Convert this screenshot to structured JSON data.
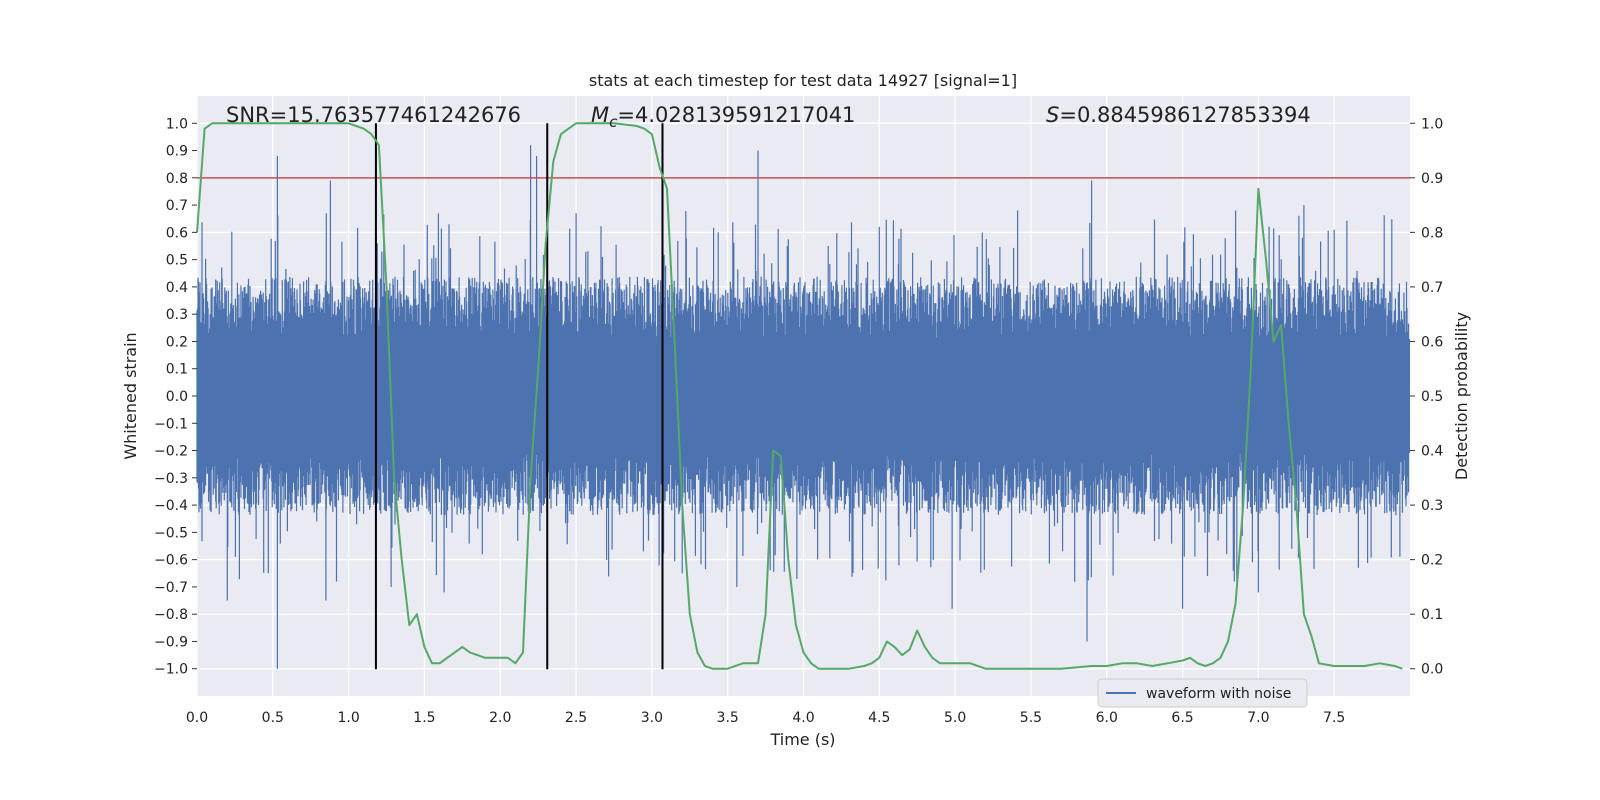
{
  "chart_data": {
    "type": "line",
    "title": "stats at each timestep for test data 14927 [signal=1]",
    "xlabel": "Time (s)",
    "ylabel_left": "Whitened strain",
    "ylabel_right": "Detection probability",
    "xlim": [
      0.0,
      8.0
    ],
    "ylim_left": [
      -1.1,
      1.1
    ],
    "ylim_right": [
      -0.05,
      1.05
    ],
    "x_ticks": [
      0.0,
      0.5,
      1.0,
      1.5,
      2.0,
      2.5,
      3.0,
      3.5,
      4.0,
      4.5,
      5.0,
      5.5,
      6.0,
      6.5,
      7.0,
      7.5
    ],
    "x_tick_labels": [
      "0.0",
      "0.5",
      "1.0",
      "1.5",
      "2.0",
      "2.5",
      "3.0",
      "3.5",
      "4.0",
      "4.5",
      "5.0",
      "5.5",
      "6.0",
      "6.5",
      "7.0",
      "7.5"
    ],
    "y_left_ticks": [
      1.0,
      0.9,
      0.8,
      0.7,
      0.6,
      0.5,
      0.4,
      0.3,
      0.2,
      0.1,
      0.0,
      -0.1,
      -0.2,
      -0.3,
      -0.4,
      -0.5,
      -0.6,
      -0.7,
      -0.8,
      -0.9,
      -1.0
    ],
    "y_left_tick_labels": [
      "1.0",
      "0.9",
      "0.8",
      "0.7",
      "0.6",
      "0.5",
      "0.4",
      "0.3",
      "0.2",
      "0.1",
      "0.0",
      "−0.1",
      "−0.2",
      "−0.3",
      "−0.4",
      "−0.5",
      "−0.6",
      "−0.7",
      "−0.8",
      "−0.9",
      "−1.0"
    ],
    "y_right_ticks": [
      1.0,
      0.9,
      0.8,
      0.7,
      0.6,
      0.5,
      0.4,
      0.3,
      0.2,
      0.1,
      0.0
    ],
    "y_right_tick_labels": [
      "1.0",
      "0.9",
      "0.8",
      "0.7",
      "0.6",
      "0.5",
      "0.4",
      "0.3",
      "0.2",
      "0.1",
      "0.0"
    ],
    "grid": true,
    "legend": {
      "position": "lower-right",
      "entries": [
        "waveform with noise"
      ]
    },
    "stats": {
      "snr": "SNR=15.763577461242676",
      "mc_symbol": "M",
      "mc_sub": "c",
      "mc_value": "=4.028139591217041",
      "s_symbol": "S",
      "s_value": "=0.8845986127853394"
    },
    "series": [
      {
        "name": "waveform with noise",
        "axis": "left",
        "color": "#4c72b0",
        "kind": "noise",
        "typical_amplitude": 0.38,
        "spikes": [
          {
            "x": 0.53,
            "y": 0.88
          },
          {
            "x": 0.53,
            "y": -1.0
          },
          {
            "x": 0.88,
            "y": 0.79
          },
          {
            "x": 0.85,
            "y": -0.75
          },
          {
            "x": 0.2,
            "y": -0.75
          },
          {
            "x": 0.47,
            "y": -0.65
          },
          {
            "x": 2.2,
            "y": 0.92
          },
          {
            "x": 2.24,
            "y": 0.88
          },
          {
            "x": 3.7,
            "y": 0.9
          },
          {
            "x": 5.9,
            "y": 0.79
          },
          {
            "x": 5.87,
            "y": -0.9
          },
          {
            "x": 4.98,
            "y": -0.78
          },
          {
            "x": 6.5,
            "y": -0.78
          },
          {
            "x": 1.28,
            "y": -0.7
          },
          {
            "x": 1.63,
            "y": -0.72
          },
          {
            "x": 2.5,
            "y": 0.67
          },
          {
            "x": 7.3,
            "y": 0.7
          },
          {
            "x": 6.85,
            "y": 0.68
          },
          {
            "x": 3.56,
            "y": -0.7
          },
          {
            "x": 7.66,
            "y": -0.63
          },
          {
            "x": 0.92,
            "y": -0.68
          },
          {
            "x": 7.0,
            "y": -0.72
          },
          {
            "x": 3.2,
            "y": -0.65
          },
          {
            "x": 4.5,
            "y": 0.62
          }
        ]
      },
      {
        "name": "detection probability",
        "axis": "right",
        "color": "#55a868",
        "x": [
          0.0,
          0.05,
          0.1,
          0.2,
          0.4,
          0.6,
          0.8,
          1.0,
          1.05,
          1.1,
          1.15,
          1.2,
          1.25,
          1.3,
          1.35,
          1.4,
          1.45,
          1.5,
          1.55,
          1.6,
          1.65,
          1.7,
          1.75,
          1.8,
          1.9,
          1.95,
          2.0,
          2.05,
          2.1,
          2.15,
          2.2,
          2.25,
          2.3,
          2.35,
          2.4,
          2.45,
          2.5,
          2.6,
          2.75,
          2.9,
          2.95,
          3.0,
          3.05,
          3.1,
          3.15,
          3.2,
          3.25,
          3.3,
          3.35,
          3.4,
          3.45,
          3.5,
          3.6,
          3.65,
          3.7,
          3.75,
          3.8,
          3.85,
          3.9,
          3.95,
          4.0,
          4.05,
          4.1,
          4.2,
          4.3,
          4.4,
          4.45,
          4.5,
          4.55,
          4.6,
          4.65,
          4.7,
          4.75,
          4.8,
          4.85,
          4.9,
          5.0,
          5.1,
          5.2,
          5.3,
          5.5,
          5.7,
          5.9,
          6.0,
          6.1,
          6.2,
          6.3,
          6.4,
          6.5,
          6.55,
          6.6,
          6.65,
          6.7,
          6.75,
          6.8,
          6.85,
          6.9,
          6.95,
          7.0,
          7.05,
          7.1,
          7.15,
          7.2,
          7.25,
          7.3,
          7.35,
          7.4,
          7.5,
          7.6,
          7.7,
          7.8,
          7.9,
          7.95
        ],
        "values": [
          0.8,
          0.99,
          1.0,
          1.0,
          1.0,
          1.0,
          1.0,
          1.0,
          0.995,
          0.99,
          0.98,
          0.96,
          0.7,
          0.35,
          0.2,
          0.08,
          0.1,
          0.04,
          0.01,
          0.01,
          0.02,
          0.03,
          0.04,
          0.03,
          0.02,
          0.02,
          0.02,
          0.02,
          0.01,
          0.03,
          0.35,
          0.55,
          0.78,
          0.93,
          0.98,
          0.99,
          1.0,
          1.0,
          1.0,
          0.995,
          0.99,
          0.98,
          0.92,
          0.88,
          0.6,
          0.3,
          0.1,
          0.03,
          0.005,
          0.0,
          0.0,
          0.0,
          0.01,
          0.01,
          0.01,
          0.1,
          0.4,
          0.39,
          0.2,
          0.08,
          0.03,
          0.01,
          0.0,
          0.0,
          0.0,
          0.005,
          0.01,
          0.02,
          0.05,
          0.04,
          0.025,
          0.035,
          0.07,
          0.04,
          0.02,
          0.01,
          0.01,
          0.01,
          0.0,
          0.0,
          0.0,
          0.0,
          0.005,
          0.005,
          0.01,
          0.01,
          0.005,
          0.01,
          0.015,
          0.02,
          0.01,
          0.005,
          0.01,
          0.02,
          0.05,
          0.12,
          0.3,
          0.55,
          0.88,
          0.75,
          0.6,
          0.63,
          0.45,
          0.3,
          0.1,
          0.06,
          0.01,
          0.005,
          0.005,
          0.005,
          0.01,
          0.005,
          0.0
        ]
      }
    ],
    "threshold": {
      "axis": "right",
      "value": 0.9,
      "color": "#c44e52"
    },
    "event_markers": {
      "color": "#000000",
      "x": [
        1.18,
        2.31,
        3.07
      ],
      "y_top": 1.0,
      "y_bottom": -1.0
    }
  }
}
